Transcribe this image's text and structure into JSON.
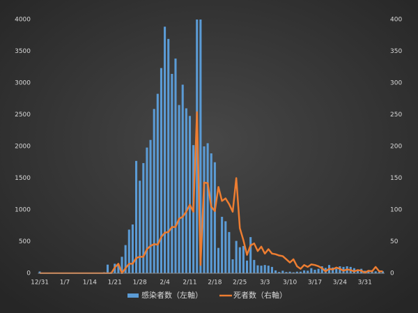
{
  "chart_data": {
    "type": "bar_line",
    "categories": [
      "12/31",
      null,
      null,
      null,
      null,
      null,
      null,
      "1/7",
      null,
      null,
      null,
      null,
      null,
      null,
      "1/14",
      null,
      null,
      null,
      null,
      null,
      null,
      "1/21",
      null,
      null,
      null,
      null,
      null,
      null,
      "1/28",
      null,
      null,
      null,
      null,
      null,
      null,
      "2/4",
      null,
      null,
      null,
      null,
      null,
      null,
      "2/11",
      null,
      null,
      null,
      null,
      null,
      null,
      "2/18",
      null,
      null,
      null,
      null,
      null,
      null,
      "2/25",
      null,
      null,
      null,
      null,
      null,
      null,
      "3/3",
      null,
      null,
      null,
      null,
      null,
      null,
      "3/10",
      null,
      null,
      null,
      null,
      null,
      null,
      "3/17",
      null,
      null,
      null,
      null,
      null,
      null,
      "3/24",
      null,
      null,
      null,
      null,
      null,
      null,
      "3/31",
      null,
      null,
      null,
      null,
      null
    ],
    "series": [
      {
        "name": "感染者数（左軸）",
        "kind": "bar",
        "axis": "y",
        "color": "#5b9bd5",
        "values": [
          27,
          0,
          0,
          0,
          0,
          0,
          0,
          0,
          0,
          0,
          0,
          0,
          0,
          0,
          0,
          0,
          0,
          4,
          17,
          136,
          19,
          150,
          130,
          260,
          444,
          688,
          769,
          1771,
          1459,
          1737,
          1982,
          2102,
          2590,
          2829,
          3235,
          3887,
          3694,
          3143,
          3385,
          2652,
          2973,
          2600,
          2480,
          2020,
          4000,
          4000,
          2000,
          2050,
          1890,
          1750,
          400,
          890,
          820,
          650,
          220,
          510,
          410,
          430,
          200,
          570,
          210,
          125,
          120,
          130,
          120,
          100,
          45,
          20,
          40,
          20,
          25,
          15,
          25,
          25,
          45,
          40,
          80,
          55,
          70,
          110,
          85,
          130,
          90,
          70,
          110,
          100,
          110,
          100,
          80,
          60,
          70,
          40,
          30,
          50,
          30,
          20,
          30
        ]
      },
      {
        "name": "死者数（右軸）",
        "kind": "line",
        "axis": "y2",
        "color": "#ed7d31",
        "values": [
          0,
          0,
          0,
          0,
          0,
          0,
          0,
          0,
          0,
          0,
          0,
          0,
          0,
          0,
          0,
          0,
          0,
          0,
          0,
          0,
          0,
          9,
          15,
          0,
          8,
          15,
          15,
          24,
          26,
          26,
          38,
          43,
          46,
          45,
          57,
          64,
          65,
          73,
          73,
          86,
          89,
          97,
          108,
          97,
          254,
          13,
          143,
          142,
          105,
          98,
          136,
          114,
          118,
          109,
          97,
          150,
          71,
          52,
          29,
          44,
          47,
          35,
          42,
          31,
          38,
          31,
          30,
          28,
          27,
          22,
          17,
          22,
          11,
          7,
          13,
          10,
          14,
          13,
          11,
          8,
          3,
          7,
          6,
          9,
          7,
          4,
          6,
          5,
          3,
          5,
          4,
          1,
          4,
          3,
          10,
          3,
          3
        ]
      }
    ],
    "ylim": [
      0,
      4000
    ],
    "yticks": [
      0,
      500,
      1000,
      1500,
      2000,
      2500,
      3000,
      3500,
      4000
    ],
    "y2lim": [
      0,
      400
    ],
    "y2ticks": [
      0,
      50,
      100,
      150,
      200,
      250,
      300,
      350,
      400
    ],
    "legend": "bottom"
  }
}
